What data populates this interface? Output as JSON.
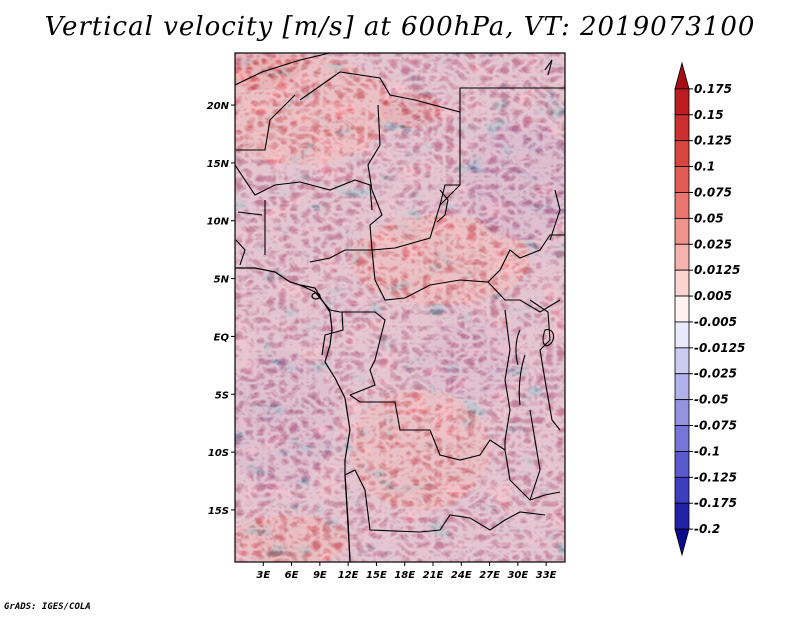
{
  "title": "Vertical velocity [m/s] at 600hPa, VT: 2019073100",
  "credit": "GrADS: IGES/COLA",
  "map": {
    "lat_labels": [
      "20N",
      "15N",
      "10N",
      "5N",
      "EQ",
      "5S",
      "10S",
      "15S"
    ],
    "lon_labels": [
      "3E",
      "6E",
      "9E",
      "12E",
      "15E",
      "18E",
      "21E",
      "24E",
      "27E",
      "30E",
      "33E"
    ],
    "lat_values": [
      20,
      15,
      10,
      5,
      0,
      -5,
      -10,
      -15
    ],
    "lon_values": [
      3,
      6,
      9,
      12,
      15,
      18,
      21,
      24,
      27,
      30,
      33
    ],
    "lon_range": [
      0,
      35
    ],
    "lat_range": [
      -19.5,
      24.5
    ]
  },
  "colorbar": {
    "labels": [
      "0.175",
      "0.15",
      "0.125",
      "0.1",
      "0.075",
      "0.05",
      "0.025",
      "0.0125",
      "0.005",
      "-0.005",
      "-0.0125",
      "-0.025",
      "-0.05",
      "-0.075",
      "-0.1",
      "-0.125",
      "-0.175",
      "-0.2"
    ],
    "colors": [
      "#a50f15",
      "#bd1d22",
      "#cb2f2f",
      "#d9453f",
      "#e25c55",
      "#ea766f",
      "#f0938c",
      "#f6b3ad",
      "#fbd3cf",
      "#fff3f2",
      "#e9e9fb",
      "#ccccf3",
      "#b1b1ec",
      "#9393e2",
      "#7676d8",
      "#5a5acc",
      "#3d3dbd",
      "#2222a8",
      "#0b0b8c"
    ]
  }
}
